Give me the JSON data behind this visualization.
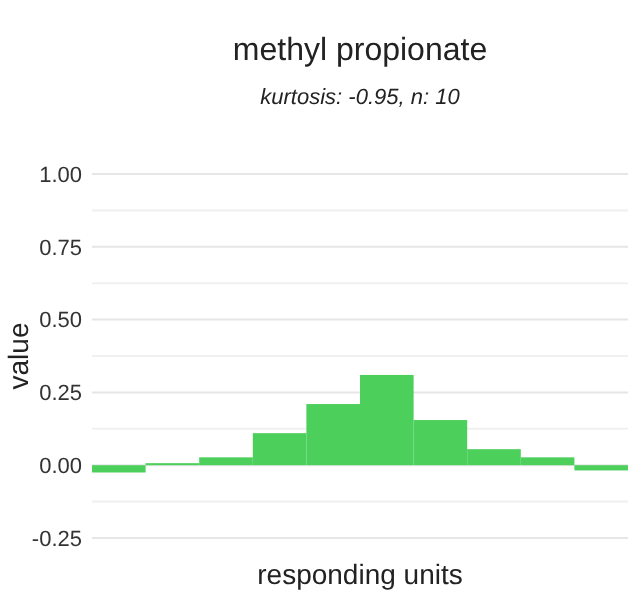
{
  "chart_data": {
    "type": "bar",
    "title": "methyl propionate",
    "subtitle": "kurtosis: -0.95, n: 10",
    "xlabel": "responding units",
    "ylabel": "value",
    "categories": [
      null,
      null,
      null,
      null,
      null,
      null,
      null,
      null,
      null,
      null
    ],
    "values": [
      -0.025,
      0.007,
      0.027,
      0.11,
      0.21,
      0.31,
      0.155,
      0.055,
      0.027,
      -0.018
    ],
    "color": "#4cd05b",
    "ylim": [
      -0.25,
      1
    ],
    "yticks": [
      -0.25,
      {
        "value": -0.125,
        "label": null
      },
      {
        "value": 0,
        "label": "0.00"
      },
      {
        "value": 0.125,
        "label": null
      },
      0.25,
      {
        "value": 0.375,
        "label": null
      },
      {
        "value": 0.5,
        "label": "0.50"
      },
      {
        "value": 0.625,
        "label": null
      },
      0.75,
      {
        "value": 0.875,
        "label": null
      },
      {
        "value": 1,
        "label": "1.00"
      }
    ],
    "grid": "y"
  }
}
